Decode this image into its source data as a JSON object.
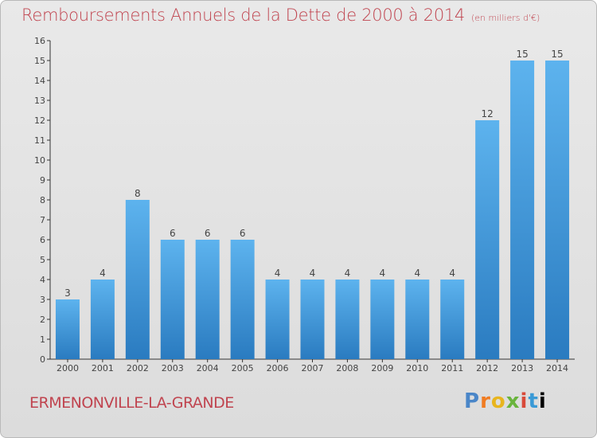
{
  "title": "Remboursements Annuels de la Dette de 2000 à 2014",
  "unit_note": "(en milliers d'€)",
  "commune": "ERMENONVILLE-LA-GRANDE",
  "logo_text": "Proxiti",
  "colors": {
    "title": "#c0444f",
    "bar_top": "#5db3ee",
    "bar_bottom": "#2a7bc0",
    "axis": "#333333"
  },
  "chart_data": {
    "type": "bar",
    "title": "Remboursements Annuels de la Dette de 2000 à 2014",
    "categories": [
      "2000",
      "2001",
      "2002",
      "2003",
      "2004",
      "2005",
      "2006",
      "2007",
      "2008",
      "2009",
      "2010",
      "2011",
      "2012",
      "2013",
      "2014"
    ],
    "values": [
      3,
      4,
      8,
      6,
      6,
      6,
      4,
      4,
      4,
      4,
      4,
      4,
      12,
      15,
      15
    ],
    "data_labels": [
      "3",
      "4",
      "8",
      "6",
      "6",
      "6",
      "4",
      "4",
      "4",
      "4",
      "4",
      "4",
      "12",
      "15",
      "15"
    ],
    "ylim": [
      0,
      16
    ],
    "yticks": [
      0,
      1,
      2,
      3,
      4,
      5,
      6,
      7,
      8,
      9,
      10,
      11,
      12,
      13,
      14,
      15,
      16
    ],
    "xlabel": "",
    "ylabel": "",
    "grid": false,
    "legend": "none"
  }
}
